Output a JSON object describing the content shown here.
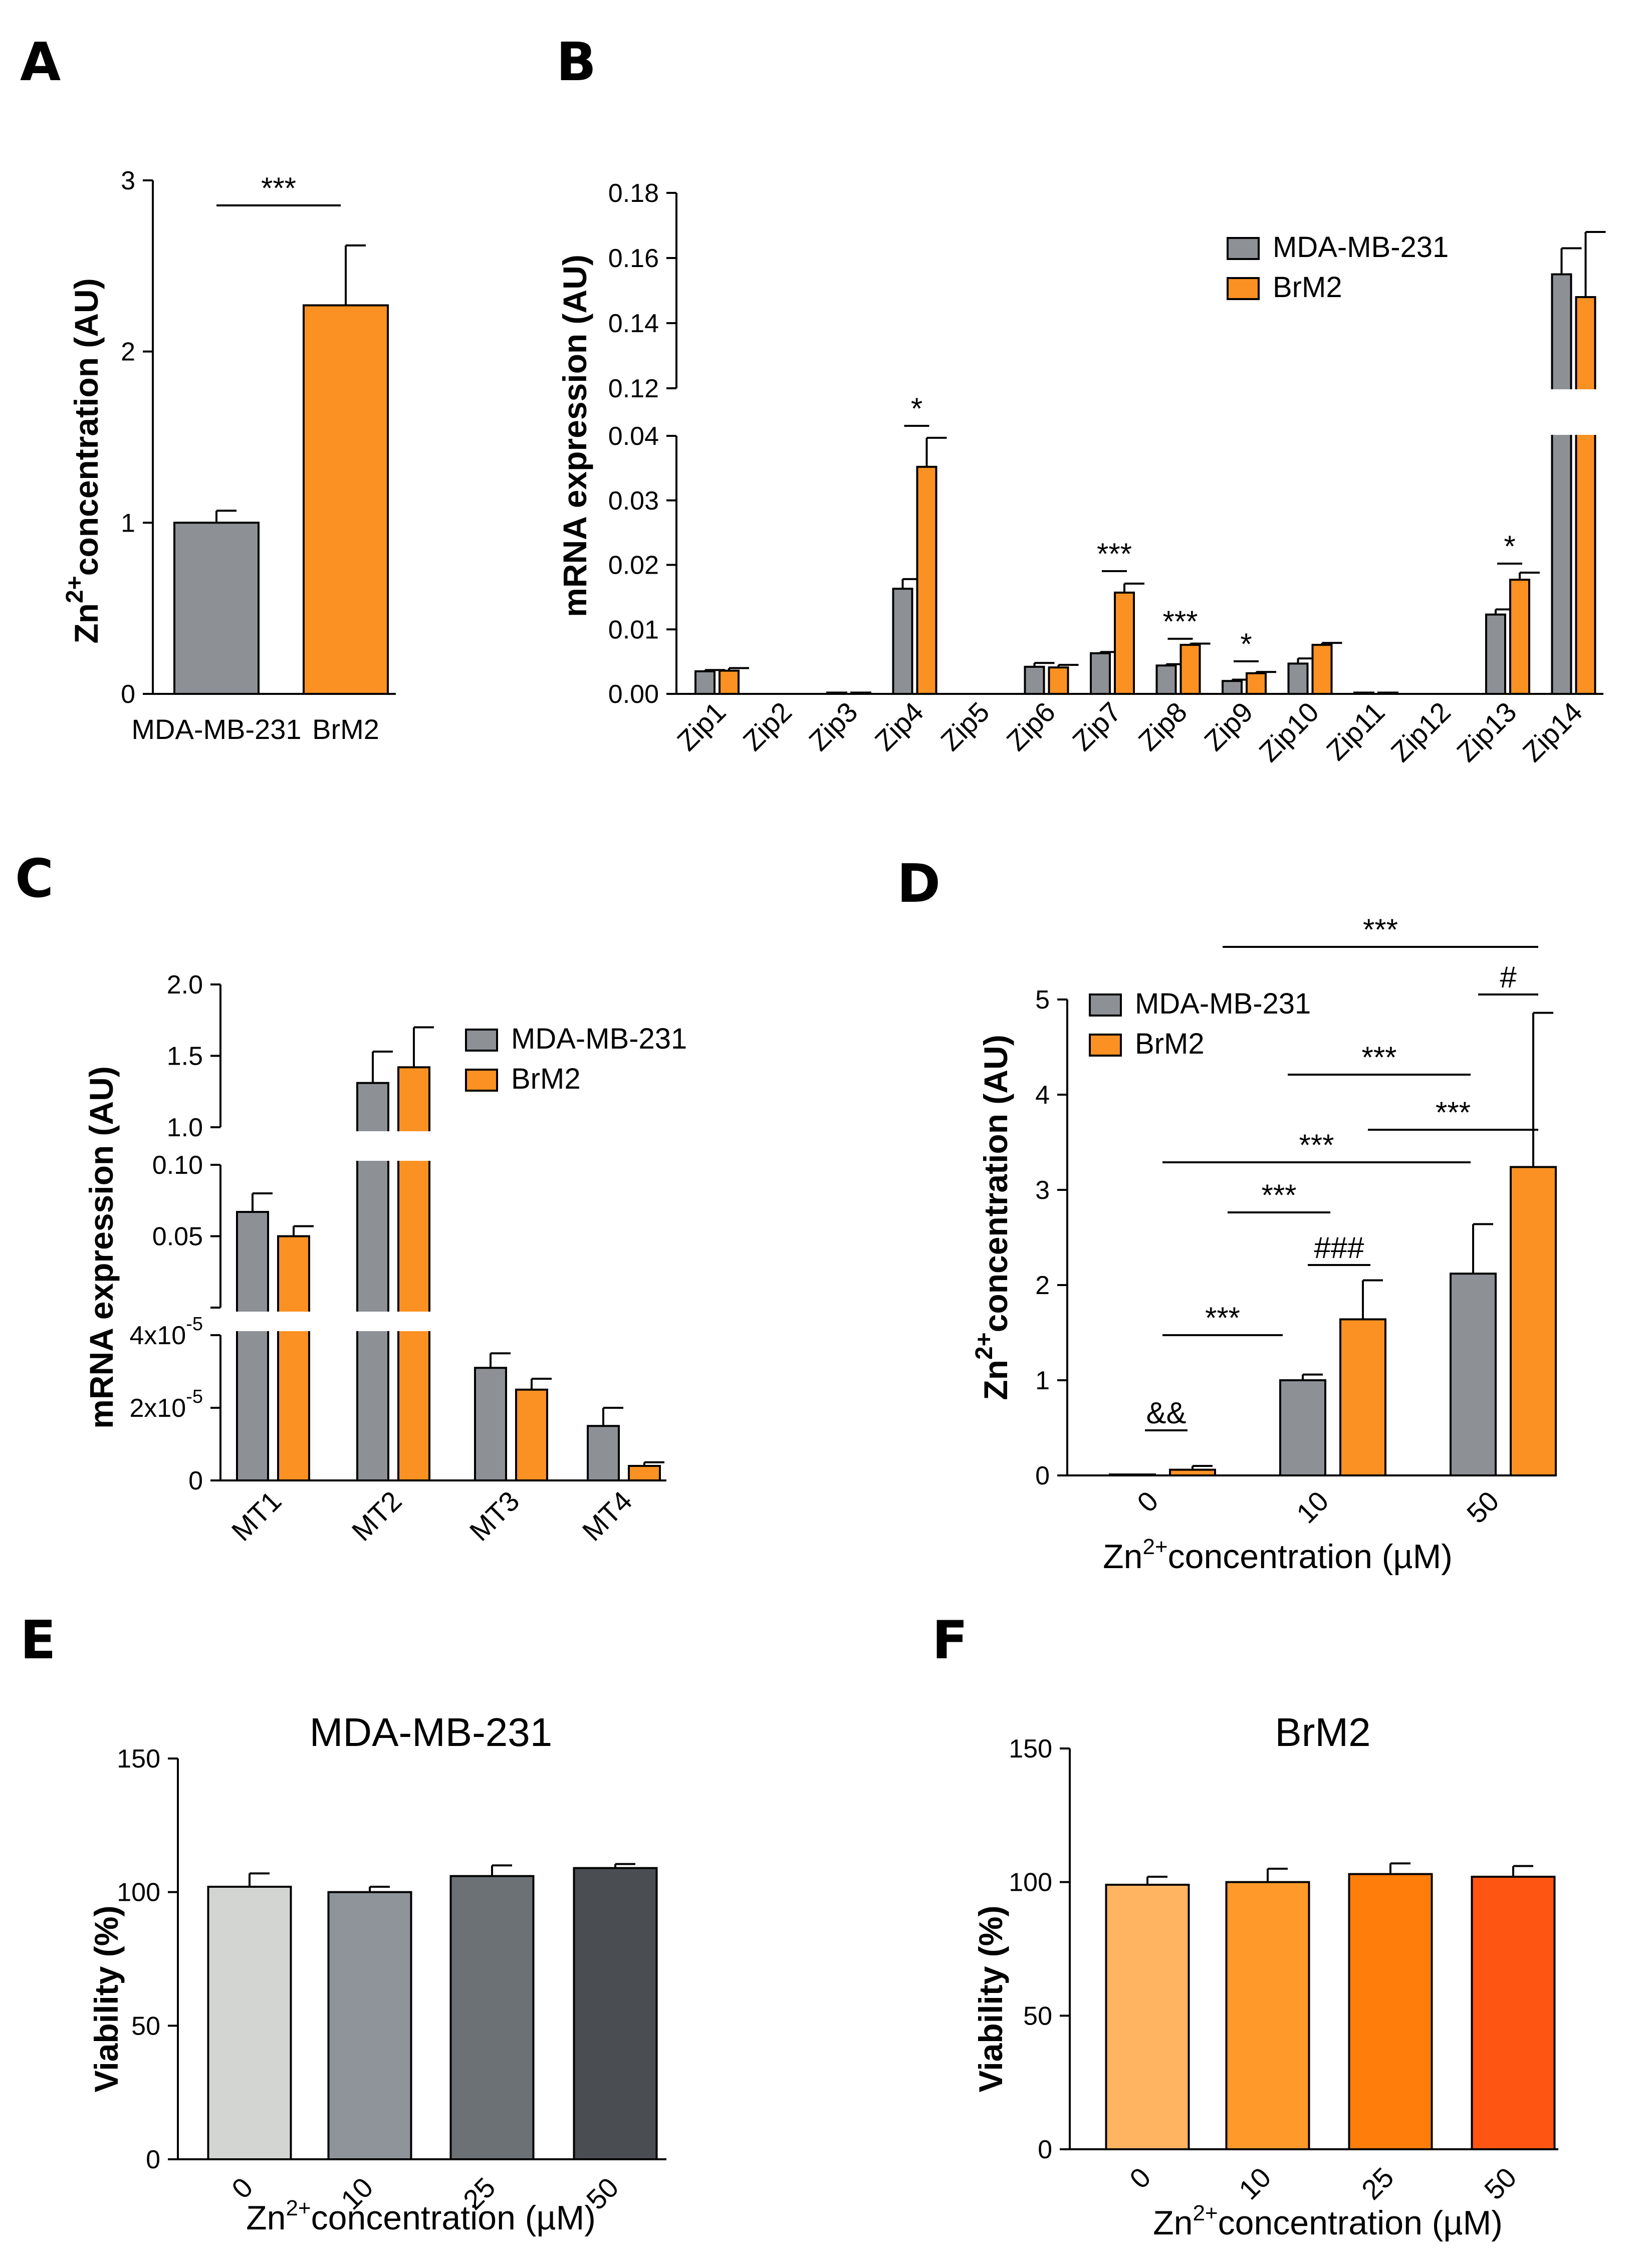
{
  "colors": {
    "grey": "#8d9196",
    "orange": "#fa9122",
    "viability_grey": [
      "#d3d5d3",
      "#8f949a",
      "#6c7175",
      "#4a4e52"
    ],
    "viability_orange": [
      "#ffb462",
      "#ff9a2a",
      "#ff7d0b",
      "#ff5512"
    ]
  },
  "chart_data": [
    {
      "panel": "A",
      "type": "bar",
      "ylabel_main": "Zn",
      "ylabel_sup": "2+",
      "ylabel_rest": "concentration (AU)",
      "ylim": [
        0,
        3
      ],
      "yticks": [
        "0",
        "1",
        "2",
        "3"
      ],
      "categories": [
        "MDA-MB-231",
        "BrM2"
      ],
      "values": [
        1.0,
        2.27
      ],
      "errors": [
        0.07,
        0.35
      ],
      "bar_colors": [
        "#8d9196",
        "#fa9122"
      ],
      "significance": [
        {
          "from": 0,
          "to": 1,
          "label": "***"
        }
      ]
    },
    {
      "panel": "B",
      "type": "bar",
      "ylabel": "mRNA expression (AU)",
      "axis_break": {
        "lower_max": 0.04,
        "upper_min": 0.12,
        "upper_max": 0.18
      },
      "yticks_lower": [
        "0.00",
        "0.01",
        "0.02",
        "0.03",
        "0.04"
      ],
      "yticks_upper": [
        "0.12",
        "0.14",
        "0.16",
        "0.18"
      ],
      "categories": [
        "Zip1",
        "Zip2",
        "Zip3",
        "Zip4",
        "Zip5",
        "Zip6",
        "Zip7",
        "Zip8",
        "Zip9",
        "Zip10",
        "Zip11",
        "Zip12",
        "Zip13",
        "Zip14"
      ],
      "series": [
        {
          "name": "MDA-MB-231",
          "values": [
            0.0035,
            0,
            0.0002,
            0.0163,
            0,
            0.0042,
            0.0063,
            0.0044,
            0.002,
            0.0047,
            0.0002,
            0,
            0.0123,
            0.155
          ],
          "errors": [
            0.0002,
            0,
            0,
            0.0015,
            0,
            0.0006,
            0.0002,
            0.0002,
            0.0002,
            0.0008,
            0,
            0,
            0.0008,
            0.008
          ]
        },
        {
          "name": "BrM2",
          "values": [
            0.0036,
            0,
            0.0002,
            0.0352,
            0,
            0.0041,
            0.0157,
            0.0076,
            0.0032,
            0.0076,
            0.0002,
            0,
            0.0177,
            0.148
          ],
          "errors": [
            0.0004,
            0,
            0,
            0.0045,
            0,
            0.0004,
            0.0014,
            0.0002,
            0.0002,
            0.0003,
            0,
            0,
            0.0011,
            0.02
          ]
        }
      ],
      "significance": [
        {
          "cat": 3,
          "label": "*"
        },
        {
          "cat": 6,
          "label": "***"
        },
        {
          "cat": 7,
          "label": "***"
        },
        {
          "cat": 8,
          "label": "*"
        },
        {
          "cat": 12,
          "label": "*"
        }
      ],
      "legend": [
        "MDA-MB-231",
        "BrM2"
      ]
    },
    {
      "panel": "C",
      "type": "bar",
      "ylabel": "mRNA expression (AU)",
      "yticks_top": [
        "1.0",
        "1.5",
        "2.0"
      ],
      "yticks_mid": [
        "0.05",
        "0.10"
      ],
      "yticks_bottom": [
        {
          "base": "0",
          "exp": ""
        },
        {
          "base": "2x10",
          "exp": "-5"
        },
        {
          "base": "4x10",
          "exp": "-5"
        }
      ],
      "categories": [
        "MT1",
        "MT2",
        "MT3",
        "MT4"
      ],
      "series": [
        {
          "name": "MDA-MB-231",
          "values": [
            0.067,
            1.31,
            3.1e-05,
            1.5e-05
          ],
          "errors": [
            0.013,
            0.22,
            4e-06,
            5e-06
          ],
          "segment": [
            "mid",
            "top",
            "bottom",
            "bottom"
          ]
        },
        {
          "name": "BrM2",
          "values": [
            0.05,
            1.42,
            2.5e-05,
            4e-06
          ],
          "errors": [
            0.007,
            0.28,
            3e-06,
            1e-06
          ],
          "segment": [
            "mid",
            "top",
            "bottom",
            "bottom"
          ]
        }
      ],
      "legend": [
        "MDA-MB-231",
        "BrM2"
      ]
    },
    {
      "panel": "D",
      "type": "bar",
      "ylabel_main": "Zn",
      "ylabel_sup": "2+",
      "ylabel_rest": "concentration (AU)",
      "ylim": [
        0,
        5
      ],
      "yticks": [
        "0",
        "1",
        "2",
        "3",
        "4",
        "5"
      ],
      "categories": [
        "0",
        "10",
        "50"
      ],
      "xlabel_main": "Zn",
      "xlabel_sup": "2+",
      "xlabel_rest": "concentration (µM)",
      "series": [
        {
          "name": "MDA-MB-231",
          "values": [
            0.01,
            1.0,
            2.12
          ],
          "errors": [
            0.01,
            0.06,
            0.52
          ]
        },
        {
          "name": "BrM2",
          "values": [
            0.06,
            1.64,
            3.24
          ],
          "errors": [
            0.04,
            0.41,
            1.62
          ]
        }
      ],
      "significance_labels": [
        "***",
        "#",
        "***",
        "***",
        "***",
        "***",
        "###",
        "***",
        "&&"
      ],
      "legend": [
        "MDA-MB-231",
        "BrM2"
      ]
    },
    {
      "panel": "E",
      "type": "bar",
      "title": "MDA-MB-231",
      "ylabel": "Viability (%)",
      "ylim": [
        0,
        150
      ],
      "yticks": [
        "0",
        "50",
        "100",
        "150"
      ],
      "categories": [
        "0",
        "10",
        "25",
        "50"
      ],
      "values": [
        102,
        100,
        106,
        109
      ],
      "errors": [
        5,
        2,
        4,
        1.5
      ],
      "xlabel_main": "Zn",
      "xlabel_sup": "2+",
      "xlabel_rest": "concentration (µM)"
    },
    {
      "panel": "F",
      "type": "bar",
      "title": "BrM2",
      "ylabel": "Viability (%)",
      "ylim": [
        0,
        150
      ],
      "yticks": [
        "0",
        "50",
        "100",
        "150"
      ],
      "categories": [
        "0",
        "10",
        "25",
        "50"
      ],
      "values": [
        99,
        100,
        103,
        102
      ],
      "errors": [
        3,
        5,
        4,
        4
      ],
      "xlabel_main": "Zn",
      "xlabel_sup": "2+",
      "xlabel_rest": "concentration (µM)"
    }
  ]
}
